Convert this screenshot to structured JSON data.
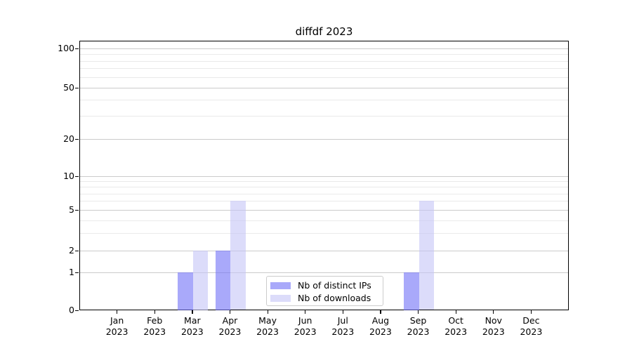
{
  "chart_data": {
    "type": "bar",
    "title": "diffdf 2023",
    "categories": [
      "Jan",
      "Feb",
      "Mar",
      "Apr",
      "May",
      "Jun",
      "Jul",
      "Aug",
      "Sep",
      "Oct",
      "Nov",
      "Dec"
    ],
    "x_year_label": "2023",
    "series": [
      {
        "name": "Nb of distinct IPs",
        "color": "rgba(112,112,246,0.6)",
        "values": [
          0,
          0,
          1,
          2,
          0,
          0,
          0,
          0,
          1,
          0,
          0,
          0
        ]
      },
      {
        "name": "Nb of downloads",
        "color": "rgba(197,197,247,0.6)",
        "values": [
          0,
          0,
          2,
          6,
          0,
          0,
          0,
          0,
          6,
          0,
          0,
          0
        ]
      }
    ],
    "yscale": "log1p",
    "y_major_ticks": [
      0,
      1,
      2,
      5,
      10,
      20,
      50,
      100
    ],
    "y_minor_ticks": [
      3,
      4,
      6,
      7,
      8,
      9,
      30,
      40,
      60,
      70,
      80,
      90
    ],
    "grid": "horizontal",
    "legend_position": "lower-center",
    "colors": {
      "major_grid": "#cbcbcb",
      "minor_grid": "#eaeaea",
      "spine": "#000000",
      "legend_border": "#cccccc"
    }
  }
}
